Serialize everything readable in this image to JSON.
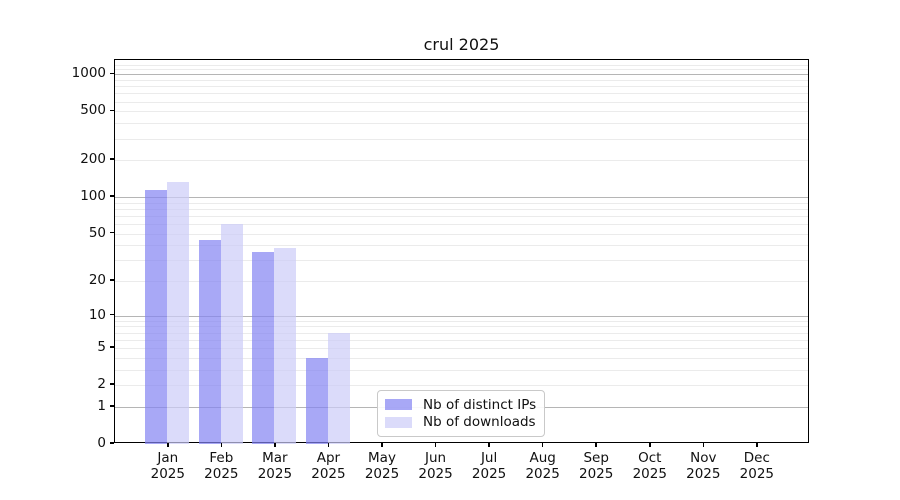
{
  "chart_data": {
    "type": "bar",
    "title": "crul 2025",
    "categories": [
      "Jan",
      "Feb",
      "Mar",
      "Apr",
      "May",
      "Jun",
      "Jul",
      "Aug",
      "Sep",
      "Oct",
      "Nov",
      "Dec"
    ],
    "category_year": "2025",
    "series": [
      {
        "name": "Nb of distinct IPs",
        "color": "#8383f2",
        "values": [
          114,
          44,
          35,
          4,
          0,
          0,
          0,
          0,
          0,
          0,
          0,
          0
        ]
      },
      {
        "name": "Nb of downloads",
        "color": "#ccccf8",
        "values": [
          134,
          60,
          38,
          7,
          0,
          0,
          0,
          0,
          0,
          0,
          0,
          0
        ]
      }
    ],
    "bar_alpha": 0.7,
    "yscale": "log1p",
    "yticks": [
      0,
      1,
      2,
      5,
      10,
      20,
      50,
      100,
      200,
      500,
      1000
    ],
    "ylim": [
      0,
      1300
    ],
    "xlabel": "",
    "ylabel": "",
    "grid": {
      "visible": true,
      "major_values": [
        1,
        10,
        100,
        1000
      ],
      "major_color": "#b5b5b5",
      "minor_color": "#ebebeb"
    },
    "legend": {
      "position": "lower-center",
      "border_color": "#c9c9c9",
      "background": "#ffffff"
    },
    "frame_color": "#000000",
    "background": "#ffffff"
  }
}
